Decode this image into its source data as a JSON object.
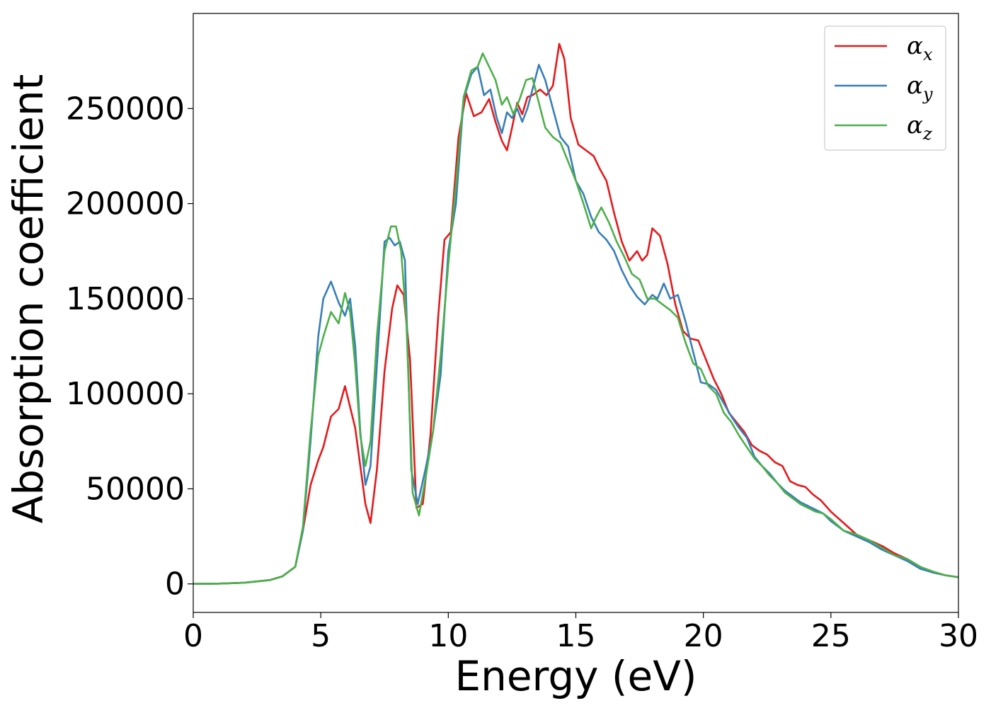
{
  "chart_data": {
    "type": "line",
    "xlabel": "Energy (eV)",
    "ylabel": "Absorption coefficient",
    "xlim": [
      0,
      30
    ],
    "ylim": [
      -15000,
      300000
    ],
    "xticks": [
      "0",
      "5",
      "10",
      "15",
      "20",
      "25",
      "30"
    ],
    "yticks": [
      "0",
      "50000",
      "100000",
      "150000",
      "200000",
      "250000"
    ],
    "grid": false,
    "legend_position": "top-right",
    "series": [
      {
        "name": "αx",
        "symbol": "α",
        "subscript": "x",
        "color": "#e41a1c",
        "x": [
          0,
          1,
          2,
          3,
          3.5,
          4,
          4.3,
          4.6,
          4.9,
          5.1,
          5.4,
          5.7,
          5.95,
          6.15,
          6.35,
          6.55,
          6.75,
          6.95,
          7.2,
          7.5,
          7.8,
          8.0,
          8.25,
          8.5,
          8.75,
          9.0,
          9.3,
          9.6,
          9.85,
          10.1,
          10.4,
          10.7,
          11.0,
          11.3,
          11.6,
          11.85,
          12.1,
          12.3,
          12.5,
          12.7,
          12.9,
          13.1,
          13.3,
          13.6,
          13.85,
          14.1,
          14.35,
          14.55,
          14.8,
          15.1,
          15.4,
          15.7,
          15.95,
          16.2,
          16.5,
          16.8,
          17.1,
          17.4,
          17.6,
          17.8,
          18.0,
          18.3,
          18.6,
          18.9,
          19.2,
          19.5,
          19.8,
          20.1,
          20.4,
          20.7,
          21.0,
          21.3,
          21.6,
          21.9,
          22.2,
          22.5,
          22.8,
          23.1,
          23.4,
          23.7,
          24.0,
          24.3,
          24.6,
          25.0,
          25.5,
          26.0,
          26.5,
          27.0,
          27.5,
          28.0,
          28.5,
          29.0,
          29.5,
          30.0
        ],
        "y": [
          0,
          150,
          600,
          2000,
          4000,
          9000,
          28000,
          52000,
          65000,
          72000,
          88000,
          92000,
          104000,
          93000,
          82000,
          62000,
          42000,
          32000,
          60000,
          112000,
          145000,
          157000,
          152000,
          118000,
          40000,
          42000,
          78000,
          140000,
          181000,
          185000,
          235000,
          258000,
          246000,
          248000,
          255000,
          243000,
          233000,
          228000,
          240000,
          253000,
          247000,
          256000,
          257000,
          260000,
          257000,
          262000,
          284000,
          276000,
          245000,
          231000,
          228000,
          225000,
          218000,
          212000,
          195000,
          180000,
          170000,
          175000,
          170000,
          173000,
          187000,
          183000,
          168000,
          147000,
          133000,
          129000,
          128000,
          118000,
          108000,
          100000,
          90000,
          85000,
          80000,
          73000,
          70000,
          68000,
          64000,
          62000,
          54000,
          52000,
          51000,
          47000,
          44000,
          38000,
          32000,
          26000,
          23000,
          20000,
          16000,
          13000,
          9000,
          6000,
          4500,
          3500
        ]
      },
      {
        "name": "αy",
        "symbol": "α",
        "subscript": "y",
        "color": "#377eb8",
        "x": [
          0,
          1,
          2,
          3,
          3.5,
          4,
          4.3,
          4.6,
          4.9,
          5.1,
          5.4,
          5.7,
          5.95,
          6.15,
          6.35,
          6.55,
          6.75,
          6.95,
          7.2,
          7.5,
          7.7,
          7.9,
          8.1,
          8.3,
          8.55,
          8.8,
          9.1,
          9.4,
          9.7,
          10.0,
          10.3,
          10.6,
          10.9,
          11.15,
          11.4,
          11.65,
          11.9,
          12.1,
          12.3,
          12.5,
          12.7,
          12.9,
          13.1,
          13.3,
          13.55,
          13.8,
          14.1,
          14.4,
          14.7,
          15.0,
          15.3,
          15.6,
          15.9,
          16.2,
          16.5,
          16.8,
          17.1,
          17.4,
          17.7,
          18.0,
          18.2,
          18.45,
          18.7,
          19.0,
          19.3,
          19.6,
          19.9,
          20.2,
          20.5,
          20.8,
          21.1,
          21.4,
          21.7,
          22.0,
          22.3,
          22.6,
          22.9,
          23.2,
          23.5,
          23.8,
          24.1,
          24.4,
          24.7,
          25.0,
          25.5,
          26.0,
          26.5,
          27.0,
          27.5,
          28.0,
          28.5,
          29.0,
          29.5,
          30.0
        ],
        "y": [
          0,
          150,
          600,
          2000,
          4000,
          9000,
          28000,
          75000,
          130000,
          150000,
          159000,
          148000,
          141000,
          150000,
          125000,
          80000,
          52000,
          62000,
          115000,
          180000,
          182000,
          178000,
          180000,
          170000,
          60000,
          42000,
          60000,
          80000,
          110000,
          175000,
          200000,
          255000,
          268000,
          272000,
          257000,
          260000,
          245000,
          237000,
          248000,
          245000,
          250000,
          243000,
          250000,
          260000,
          273000,
          265000,
          250000,
          235000,
          230000,
          212000,
          205000,
          193000,
          185000,
          181000,
          175000,
          165000,
          157000,
          151000,
          147000,
          152000,
          150000,
          158000,
          150000,
          152000,
          138000,
          122000,
          106000,
          105000,
          102000,
          95000,
          88000,
          82000,
          77000,
          67000,
          62000,
          58000,
          53000,
          49000,
          46000,
          43000,
          41000,
          39000,
          37000,
          33000,
          28000,
          25000,
          22000,
          18000,
          15000,
          12000,
          8000,
          6000,
          4500,
          3500
        ]
      },
      {
        "name": "αz",
        "symbol": "α",
        "subscript": "z",
        "color": "#4daf4a",
        "x": [
          0,
          1,
          2,
          3,
          3.5,
          4,
          4.3,
          4.6,
          4.9,
          5.1,
          5.4,
          5.7,
          5.95,
          6.15,
          6.35,
          6.55,
          6.75,
          6.95,
          7.2,
          7.5,
          7.75,
          7.95,
          8.15,
          8.35,
          8.6,
          8.85,
          9.1,
          9.4,
          9.7,
          10.0,
          10.3,
          10.6,
          10.9,
          11.15,
          11.35,
          11.6,
          11.85,
          12.1,
          12.3,
          12.55,
          12.8,
          13.05,
          13.3,
          13.55,
          13.8,
          14.1,
          14.4,
          14.7,
          15.0,
          15.3,
          15.6,
          15.8,
          16.0,
          16.3,
          16.6,
          16.9,
          17.2,
          17.5,
          17.8,
          18.1,
          18.4,
          18.7,
          19.0,
          19.3,
          19.6,
          19.9,
          20.2,
          20.5,
          20.8,
          21.1,
          21.4,
          21.7,
          22.0,
          22.3,
          22.6,
          22.9,
          23.2,
          23.5,
          23.8,
          24.1,
          24.4,
          24.7,
          25.0,
          25.5,
          26.0,
          26.5,
          27.0,
          27.5,
          28.0,
          28.5,
          29.0,
          29.5,
          30.0
        ],
        "y": [
          0,
          150,
          600,
          2000,
          4000,
          9000,
          30000,
          80000,
          120000,
          130000,
          143000,
          137000,
          153000,
          143000,
          115000,
          78000,
          62000,
          75000,
          130000,
          175000,
          188000,
          188000,
          175000,
          140000,
          48000,
          36000,
          55000,
          80000,
          120000,
          168000,
          210000,
          256000,
          270000,
          272000,
          279000,
          272000,
          265000,
          252000,
          256000,
          247000,
          255000,
          265000,
          266000,
          253000,
          240000,
          235000,
          232000,
          222000,
          212000,
          200000,
          187000,
          193000,
          198000,
          190000,
          180000,
          172000,
          163000,
          160000,
          150000,
          150000,
          147000,
          144000,
          140000,
          127000,
          116000,
          113000,
          104000,
          100000,
          90000,
          85000,
          78000,
          72000,
          66000,
          62000,
          57000,
          53000,
          48000,
          45000,
          42000,
          40000,
          38000,
          37000,
          34000,
          28000,
          26000,
          23000,
          19000,
          15000,
          13000,
          9000,
          6500,
          4500,
          3500
        ]
      }
    ]
  }
}
